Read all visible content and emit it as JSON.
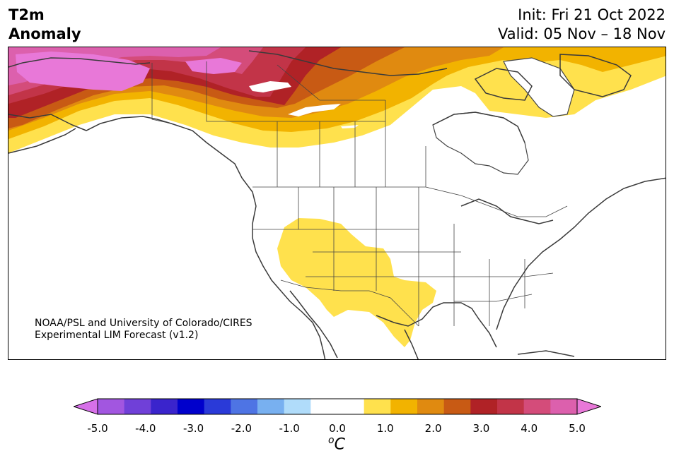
{
  "title": {
    "variable_line1": "T2m",
    "variable_line2": "Anomaly",
    "init": "Init: Fri 21 Oct 2022",
    "valid": "Valid: 05 Nov – 18 Nov"
  },
  "credit": {
    "line1": "NOAA/PSL and University of Colorado/CIRES",
    "line2": "Experimental LIM Forecast (v1.2)"
  },
  "colorbar": {
    "unit_base": "C",
    "unit_sup": "o",
    "colors": [
      "#d670e8",
      "#a256e0",
      "#7040d8",
      "#3a24cc",
      "#0000cc",
      "#2a3ad8",
      "#4e74e4",
      "#78b0f0",
      "#b0dcfa",
      "#ffffff",
      "#ffffff",
      "#ffe14d",
      "#f2b300",
      "#e08a10",
      "#c85a14",
      "#b02226",
      "#c23448",
      "#d44c7a",
      "#dc60ad",
      "#e878d8"
    ],
    "tick_labels": [
      "-5.0",
      "-4.0",
      "-3.0",
      "-2.0",
      "-1.0",
      "0.0",
      "1.0",
      "2.0",
      "3.0",
      "4.0",
      "5.0"
    ]
  },
  "map": {
    "region": "North America",
    "anomaly_colors": {
      "level_1": "#ffe14d",
      "level_1_5": "#f2b300",
      "level_2": "#e08a10",
      "level_2_5": "#c85a14",
      "level_3": "#b02226",
      "level_3_5": "#c23448",
      "level_4": "#d44c7a",
      "level_4_5": "#dc60ad",
      "level_5": "#e878d8"
    }
  }
}
